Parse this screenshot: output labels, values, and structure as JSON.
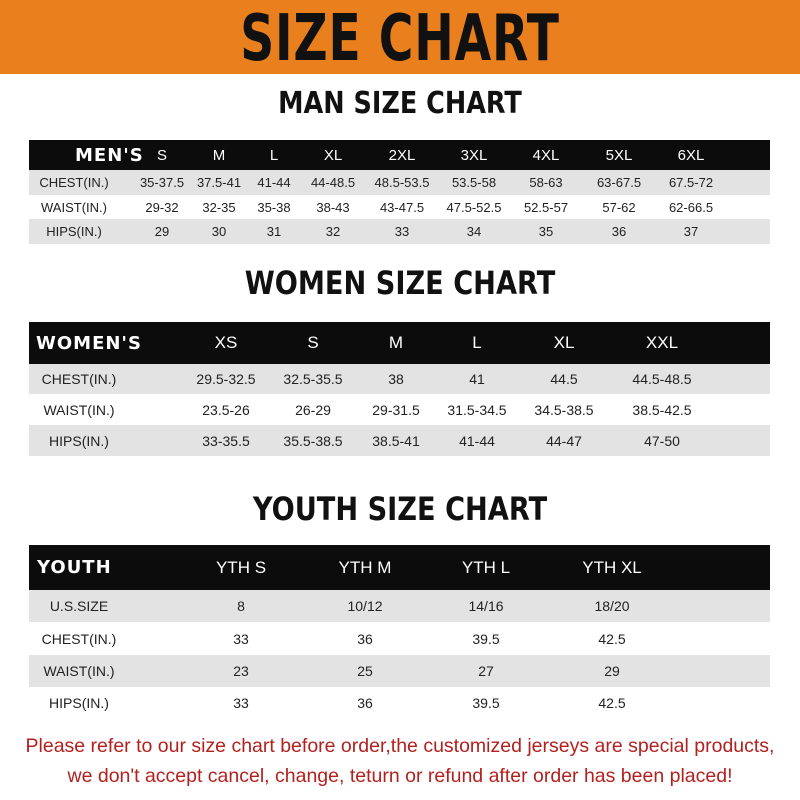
{
  "banner_title": "SIZE CHART",
  "colors": {
    "banner": "#e9801d",
    "header_row": "#0c0c0c",
    "shaded_row": "#e3e3e3",
    "notice": "#b3211f"
  },
  "men": {
    "title": "MAN SIZE CHART",
    "columns": [
      "MEN'S",
      "S",
      "M",
      "L",
      "XL",
      "2XL",
      "3XL",
      "4XL",
      "5XL",
      "6XL"
    ],
    "rows": [
      [
        "CHEST(IN.)",
        "35-37.5",
        "37.5-41",
        "41-44",
        "44-48.5",
        "48.5-53.5",
        "53.5-58",
        "58-63",
        "63-67.5",
        "67.5-72"
      ],
      [
        "WAIST(IN.)",
        "29-32",
        "32-35",
        "35-38",
        "38-43",
        "43-47.5",
        "47.5-52.5",
        "52.5-57",
        "57-62",
        "62-66.5"
      ],
      [
        "HIPS(IN.)",
        "29",
        "30",
        "31",
        "32",
        "33",
        "34",
        "35",
        "36",
        "37"
      ]
    ]
  },
  "women": {
    "title": "WOMEN SIZE CHART",
    "columns": [
      "WOMEN'S",
      "XS",
      "S",
      "M",
      "L",
      "XL",
      "XXL"
    ],
    "rows": [
      [
        "CHEST(IN.)",
        "29.5-32.5",
        "32.5-35.5",
        "38",
        "41",
        "44.5",
        "44.5-48.5"
      ],
      [
        "WAIST(IN.)",
        "23.5-26",
        "26-29",
        "29-31.5",
        "31.5-34.5",
        "34.5-38.5",
        "38.5-42.5"
      ],
      [
        "HIPS(IN.)",
        "33-35.5",
        "35.5-38.5",
        "38.5-41",
        "41-44",
        "44-47",
        "47-50"
      ]
    ]
  },
  "youth": {
    "title": "YOUTH SIZE CHART",
    "columns": [
      "YOUTH",
      "YTH S",
      "YTH M",
      "YTH L",
      "YTH XL"
    ],
    "rows": [
      [
        "U.S.SIZE",
        "8",
        "10/12",
        "14/16",
        "18/20"
      ],
      [
        "CHEST(IN.)",
        "33",
        "36",
        "39.5",
        "42.5"
      ],
      [
        "WAIST(IN.)",
        "23",
        "25",
        "27",
        "29"
      ],
      [
        "HIPS(IN.)",
        "33",
        "36",
        "39.5",
        "42.5"
      ]
    ]
  },
  "notice": {
    "line1": "Please refer to our size chart before order,the customized jerseys are special products,",
    "line2": "we don't accept cancel, change, teturn or refund after order has been placed!"
  }
}
